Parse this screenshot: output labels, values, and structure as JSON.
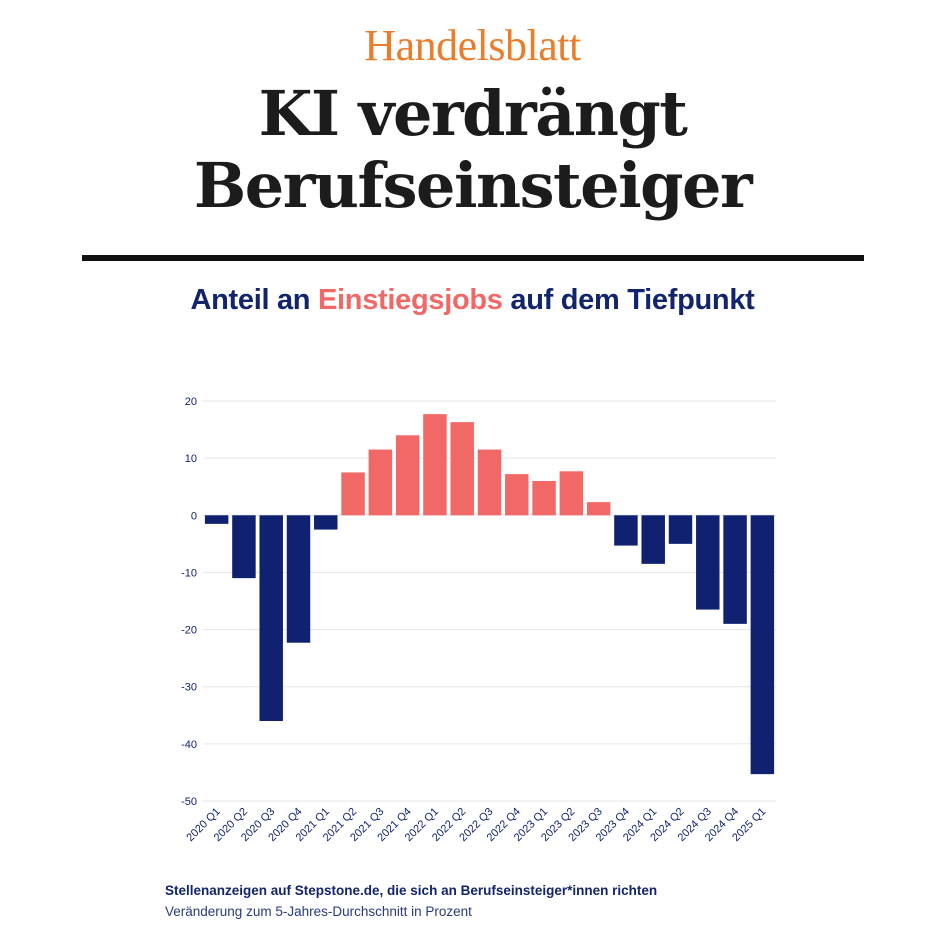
{
  "brand": "Handelsblatt",
  "headline": {
    "line1": "KI verdrängt",
    "line2": "Berufseinsteiger"
  },
  "chart_title": {
    "part1": "Anteil an ",
    "highlight": "Einstiegsjobs",
    "part2": " auf dem Tiefpunkt"
  },
  "colors": {
    "negative": "#0f2170",
    "positive": "#f26866",
    "brand": "#ea7d2c",
    "text": "#12246b"
  },
  "chart_data": {
    "type": "bar",
    "title": "Anteil an Einstiegsjobs auf dem Tiefpunkt",
    "xlabel": "",
    "ylabel": "",
    "ylim": [
      -50,
      20
    ],
    "yticks": [
      20,
      10,
      0,
      -10,
      -20,
      -30,
      -40,
      -50
    ],
    "grid": true,
    "categories": [
      "2020 Q1",
      "2020 Q2",
      "2020 Q3",
      "2020 Q4",
      "2021 Q1",
      "2021 Q2",
      "2021 Q3",
      "2021 Q4",
      "2022 Q1",
      "2022 Q2",
      "2022 Q3",
      "2022 Q4",
      "2023 Q1",
      "2023 Q2",
      "2023 Q3",
      "2023 Q4",
      "2024 Q1",
      "2024 Q2",
      "2024 Q3",
      "2024 Q4",
      "2025 Q1"
    ],
    "values": [
      -1.5,
      -11,
      -36,
      -22.3,
      -2.5,
      7.5,
      11.5,
      14,
      17.7,
      16.3,
      11.5,
      7.2,
      6,
      7.7,
      2.3,
      -5.3,
      -8.5,
      -5,
      -16.5,
      -19,
      -45.3
    ]
  },
  "footnote": {
    "source": "Stellenanzeigen auf Stepstone.de, die sich an Berufseinsteiger*innen richten",
    "unit": "Veränderung zum 5-Jahres-Durchschnitt in Prozent"
  }
}
